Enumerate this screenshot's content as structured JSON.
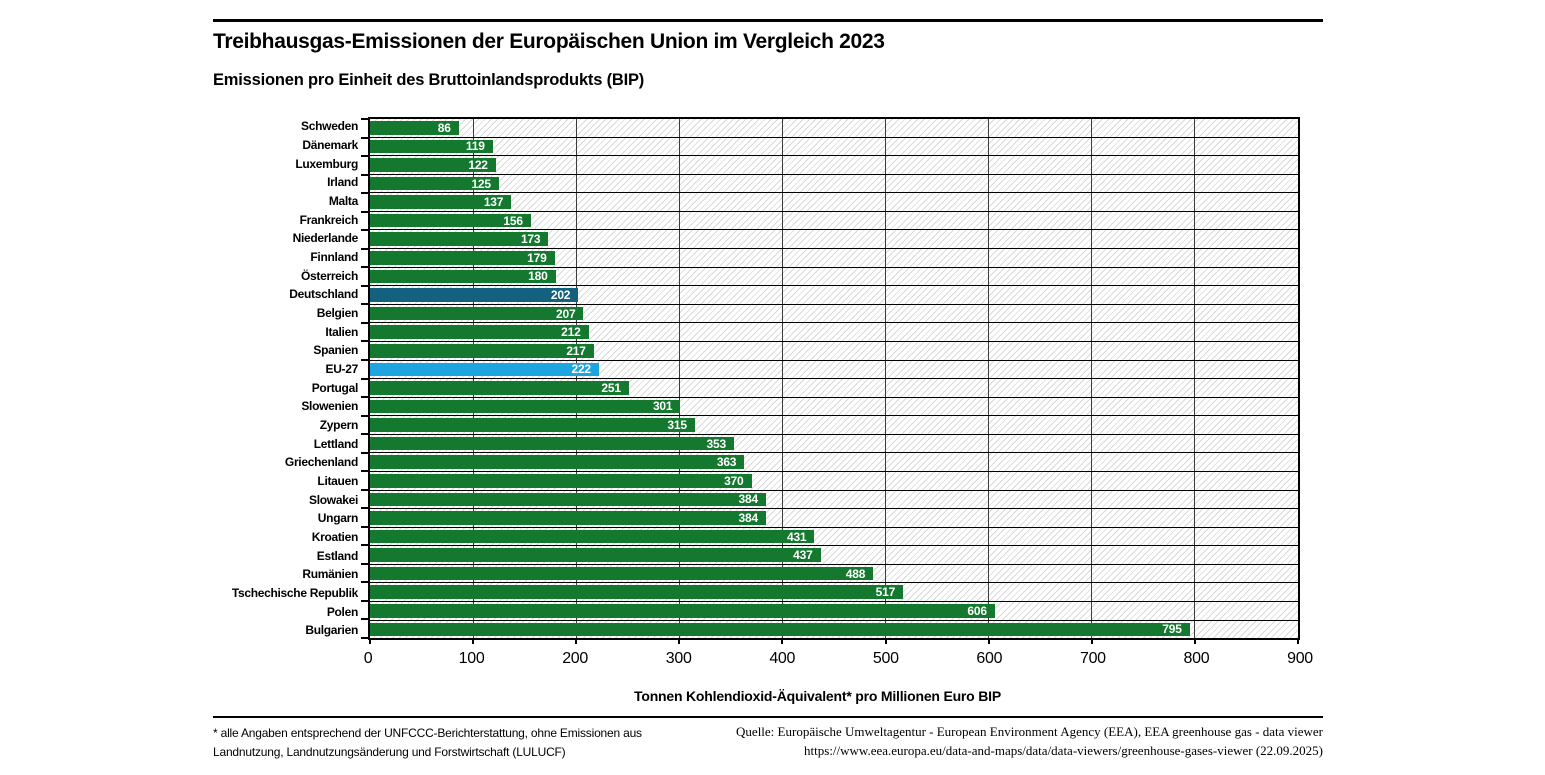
{
  "chart_data": {
    "type": "bar",
    "orientation": "horizontal",
    "title": "Treibhausgas-Emissionen der Europäischen Union im Vergleich 2023",
    "subtitle": "Emissionen pro Einheit des Bruttoinlandsprodukts (BIP)",
    "xlabel": "Tonnen Kohlendioxid-Äquivalent* pro Millionen Euro BIP",
    "xlim": [
      0,
      900
    ],
    "xticks": [
      0,
      100,
      200,
      300,
      400,
      500,
      600,
      700,
      800,
      900
    ],
    "grid": "vertical-gridlines-and-row-separators",
    "background_hatch": true,
    "legend": "none",
    "categories": [
      "Schweden",
      "Dänemark",
      "Luxemburg",
      "Irland",
      "Malta",
      "Frankreich",
      "Niederlande",
      "Finnland",
      "Österreich",
      "Deutschland",
      "Belgien",
      "Italien",
      "Spanien",
      "EU-27",
      "Portugal",
      "Slowenien",
      "Zypern",
      "Lettland",
      "Griechenland",
      "Litauen",
      "Slowakei",
      "Ungarn",
      "Kroatien",
      "Estland",
      "Rumänien",
      "Tschechische Republik",
      "Polen",
      "Bulgarien"
    ],
    "values": [
      86,
      119,
      122,
      125,
      137,
      156,
      173,
      179,
      180,
      202,
      207,
      212,
      217,
      222,
      251,
      301,
      315,
      353,
      363,
      370,
      384,
      384,
      431,
      437,
      488,
      517,
      606,
      795
    ],
    "bar_colors": [
      "green",
      "green",
      "green",
      "green",
      "green",
      "green",
      "green",
      "green",
      "green",
      "germany_blue",
      "green",
      "green",
      "green",
      "eu_blue",
      "green",
      "green",
      "green",
      "green",
      "green",
      "green",
      "green",
      "green",
      "green",
      "green",
      "green",
      "green",
      "green",
      "green"
    ]
  },
  "colors": {
    "green": "#14792f",
    "germany_blue": "#14607f",
    "eu_blue": "#1ea5e0",
    "gridline": "#3c3c3c",
    "hatch_line": "#d9d9d9",
    "value_label": "#ffffff"
  },
  "footnotes": {
    "note_line1": "* alle Angaben entsprechend der UNFCCC-Berichterstattung, ohne Emissionen aus",
    "note_line2": "Landnutzung, Landnutzungsänderung und Forstwirtschaft (LULUCF)",
    "source_line1": "Quelle: Europäische Umweltagentur - European Environment Agency (EEA), EEA greenhouse gas - data viewer",
    "source_line2": "https://www.eea.europa.eu/data-and-maps/data/data-viewers/greenhouse-gases-viewer (22.09.2025)"
  }
}
